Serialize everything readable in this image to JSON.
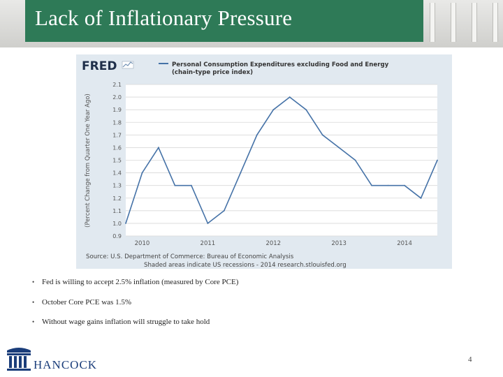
{
  "slide": {
    "title": "Lack of Inflationary Pressure",
    "page_number": "4",
    "brand": "HANCOCK"
  },
  "chart": {
    "logo_text": "FRED",
    "title_line1": "Personal Consumption Expenditures excluding Food and Energy",
    "title_line2": "(chain-type price index)",
    "ylabel": "(Percent Change from Quarter One Year Ago)",
    "source": "Source: U.S. Department of Commerce: Bureau of Economic Analysis",
    "note": "Shaded areas indicate US recessions - 2014 research.stlouisfed.org"
  },
  "bullets": [
    "Fed is willing to accept 2.5% inflation (measured by Core PCE)",
    "October Core PCE was 1.5%",
    "Without wage gains inflation will struggle to take hold"
  ],
  "chart_data": {
    "type": "line",
    "title": "Personal Consumption Expenditures excluding Food and Energy (chain-type price index)",
    "ylabel": "(Percent Change from Quarter One Year Ago)",
    "xlabel": "",
    "ylim": [
      0.9,
      2.1
    ],
    "yticks": [
      "0.9",
      "1.0",
      "1.1",
      "1.2",
      "1.3",
      "1.4",
      "1.5",
      "1.6",
      "1.7",
      "1.8",
      "1.9",
      "2.0",
      "2.1"
    ],
    "xticks": [
      "2010",
      "2011",
      "2012",
      "2013",
      "2014"
    ],
    "xlim": [
      2009.75,
      2014.5
    ],
    "grid": true,
    "series": [
      {
        "name": "Personal Consumption Expenditures excluding Food and Energy",
        "color": "#4572a7",
        "x": [
          2009.75,
          2010.0,
          2010.25,
          2010.5,
          2010.75,
          2011.0,
          2011.25,
          2011.5,
          2011.75,
          2012.0,
          2012.25,
          2012.5,
          2012.75,
          2013.0,
          2013.25,
          2013.5,
          2013.75,
          2014.0,
          2014.25,
          2014.5
        ],
        "values": [
          1.0,
          1.4,
          1.6,
          1.3,
          1.3,
          1.0,
          1.1,
          1.4,
          1.7,
          1.9,
          2.0,
          1.9,
          1.7,
          1.6,
          1.5,
          1.3,
          1.3,
          1.3,
          1.2,
          1.5
        ]
      }
    ]
  }
}
